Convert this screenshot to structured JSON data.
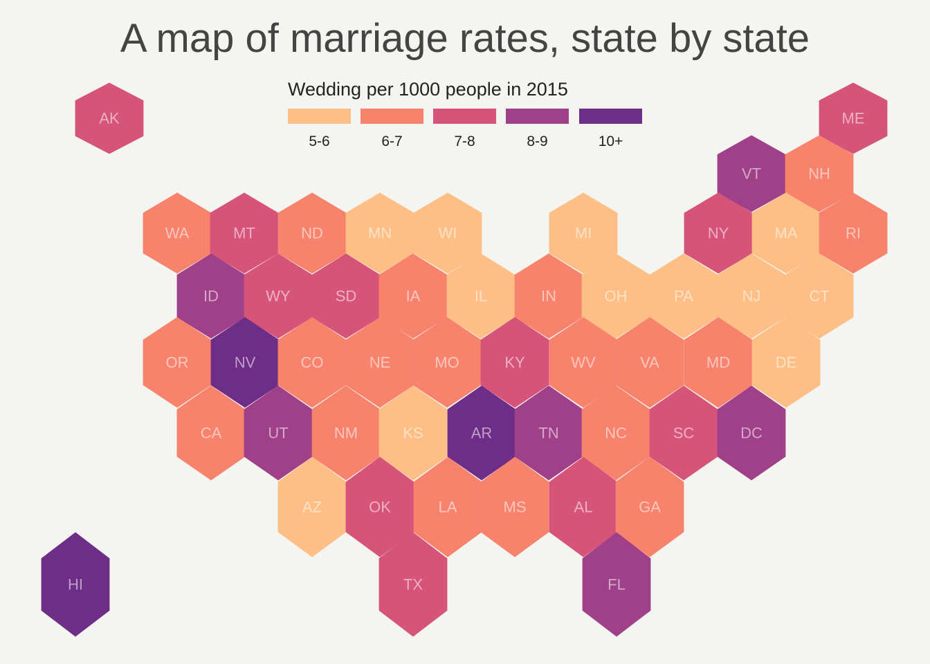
{
  "title": "A map of marriage rates, state by state",
  "chart_data": {
    "type": "hexbin-map",
    "title": "A map of marriage rates, state by state",
    "legend": {
      "title": "Wedding per 1000 people in 2015",
      "placement": "top-center",
      "categories": [
        {
          "label": "5-6",
          "color": "#FDBF86"
        },
        {
          "label": "6-7",
          "color": "#F8836D"
        },
        {
          "label": "7-8",
          "color": "#D65379"
        },
        {
          "label": "8-9",
          "color": "#A04088"
        },
        {
          "label": "10+",
          "color": "#6E2D87"
        }
      ]
    },
    "states": [
      {
        "code": "AK",
        "bin": "7-8"
      },
      {
        "code": "ME",
        "bin": "7-8"
      },
      {
        "code": "VT",
        "bin": "8-9"
      },
      {
        "code": "NH",
        "bin": "6-7"
      },
      {
        "code": "WA",
        "bin": "6-7"
      },
      {
        "code": "MT",
        "bin": "7-8"
      },
      {
        "code": "ND",
        "bin": "6-7"
      },
      {
        "code": "MN",
        "bin": "5-6"
      },
      {
        "code": "WI",
        "bin": "5-6"
      },
      {
        "code": "MI",
        "bin": "5-6"
      },
      {
        "code": "NY",
        "bin": "7-8"
      },
      {
        "code": "MA",
        "bin": "5-6"
      },
      {
        "code": "RI",
        "bin": "6-7"
      },
      {
        "code": "ID",
        "bin": "8-9"
      },
      {
        "code": "WY",
        "bin": "7-8"
      },
      {
        "code": "SD",
        "bin": "7-8"
      },
      {
        "code": "IA",
        "bin": "6-7"
      },
      {
        "code": "IL",
        "bin": "5-6"
      },
      {
        "code": "IN",
        "bin": "6-7"
      },
      {
        "code": "OH",
        "bin": "5-6"
      },
      {
        "code": "PA",
        "bin": "5-6"
      },
      {
        "code": "NJ",
        "bin": "5-6"
      },
      {
        "code": "CT",
        "bin": "5-6"
      },
      {
        "code": "OR",
        "bin": "6-7"
      },
      {
        "code": "NV",
        "bin": "10+"
      },
      {
        "code": "CO",
        "bin": "6-7"
      },
      {
        "code": "NE",
        "bin": "6-7"
      },
      {
        "code": "MO",
        "bin": "6-7"
      },
      {
        "code": "KY",
        "bin": "7-8"
      },
      {
        "code": "WV",
        "bin": "6-7"
      },
      {
        "code": "VA",
        "bin": "6-7"
      },
      {
        "code": "MD",
        "bin": "6-7"
      },
      {
        "code": "DE",
        "bin": "5-6"
      },
      {
        "code": "CA",
        "bin": "6-7"
      },
      {
        "code": "UT",
        "bin": "8-9"
      },
      {
        "code": "NM",
        "bin": "6-7"
      },
      {
        "code": "KS",
        "bin": "5-6"
      },
      {
        "code": "AR",
        "bin": "10+"
      },
      {
        "code": "TN",
        "bin": "8-9"
      },
      {
        "code": "NC",
        "bin": "6-7"
      },
      {
        "code": "SC",
        "bin": "7-8"
      },
      {
        "code": "DC",
        "bin": "8-9"
      },
      {
        "code": "AZ",
        "bin": "5-6"
      },
      {
        "code": "OK",
        "bin": "7-8"
      },
      {
        "code": "LA",
        "bin": "6-7"
      },
      {
        "code": "MS",
        "bin": "6-7"
      },
      {
        "code": "AL",
        "bin": "7-8"
      },
      {
        "code": "GA",
        "bin": "6-7"
      },
      {
        "code": "TX",
        "bin": "7-8"
      },
      {
        "code": "FL",
        "bin": "8-9"
      },
      {
        "code": "HI",
        "bin": "10+"
      }
    ]
  }
}
